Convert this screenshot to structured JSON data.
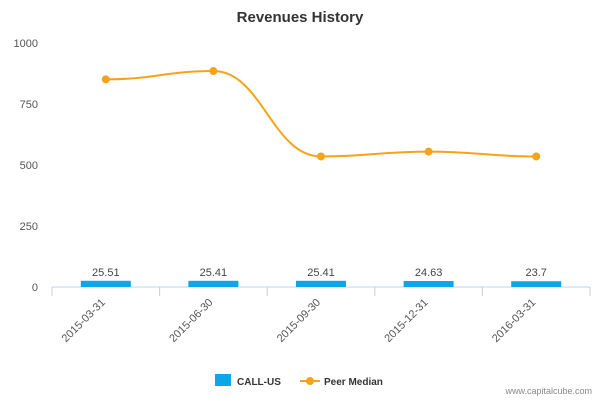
{
  "chart_data": {
    "type": "bar+line",
    "title": "Revenues History",
    "categories": [
      "2015-03-31",
      "2015-06-30",
      "2015-09-30",
      "2015-12-31",
      "2016-03-31"
    ],
    "series": [
      {
        "name": "CALL-US",
        "type": "bar",
        "values": [
          25.51,
          25.41,
          25.41,
          24.63,
          23.7
        ],
        "color": "#0ea5e9"
      },
      {
        "name": "Peer Median",
        "type": "line",
        "values": [
          851,
          885,
          535,
          555,
          535
        ],
        "color": "#f5a31a"
      }
    ],
    "data_labels": [
      "25.51",
      "25.41",
      "25.41",
      "24.63",
      "23.7"
    ],
    "yticks": [
      "0",
      "250",
      "500",
      "750",
      "1000"
    ],
    "ylim": [
      0,
      1000
    ],
    "grid": false,
    "legend_position": "bottom-center"
  },
  "watermark": "www.capitalcube.com",
  "colors": {
    "axis": "#c0d0e0",
    "text": "#555555",
    "title": "#333333"
  }
}
